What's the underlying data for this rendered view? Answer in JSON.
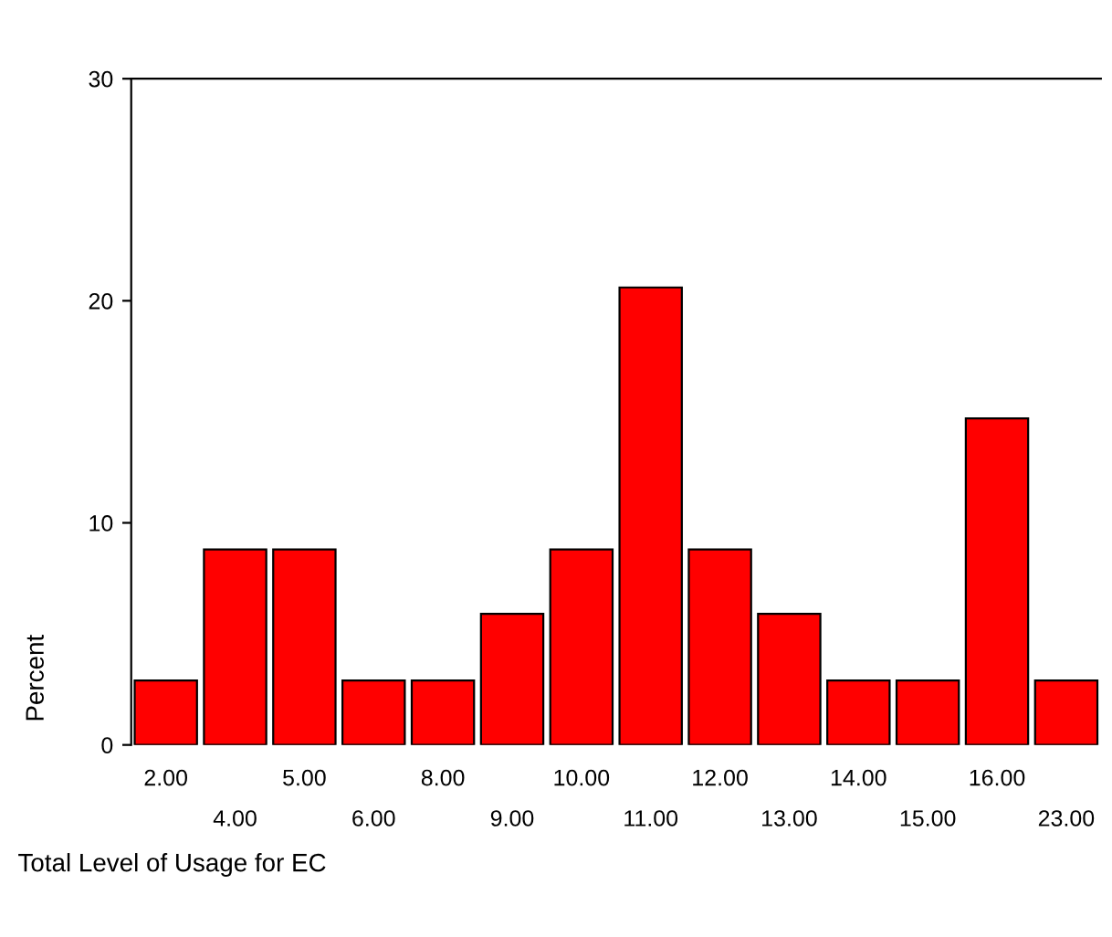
{
  "chart_data": {
    "type": "bar",
    "xlabel": "Total Level of Usage for EC",
    "ylabel": "Percent",
    "categories": [
      "2.00",
      "4.00",
      "5.00",
      "6.00",
      "8.00",
      "9.00",
      "10.00",
      "11.00",
      "12.00",
      "13.00",
      "14.00",
      "15.00",
      "16.00",
      "23.00"
    ],
    "values": [
      2.9,
      8.8,
      8.8,
      2.9,
      2.9,
      5.9,
      8.8,
      20.6,
      8.8,
      5.9,
      2.9,
      2.9,
      14.7,
      2.9
    ],
    "color": "#ff0000",
    "ylim": [
      0,
      30
    ],
    "yticks": [
      0,
      10,
      20,
      30
    ],
    "grid": false,
    "legend": false
  }
}
